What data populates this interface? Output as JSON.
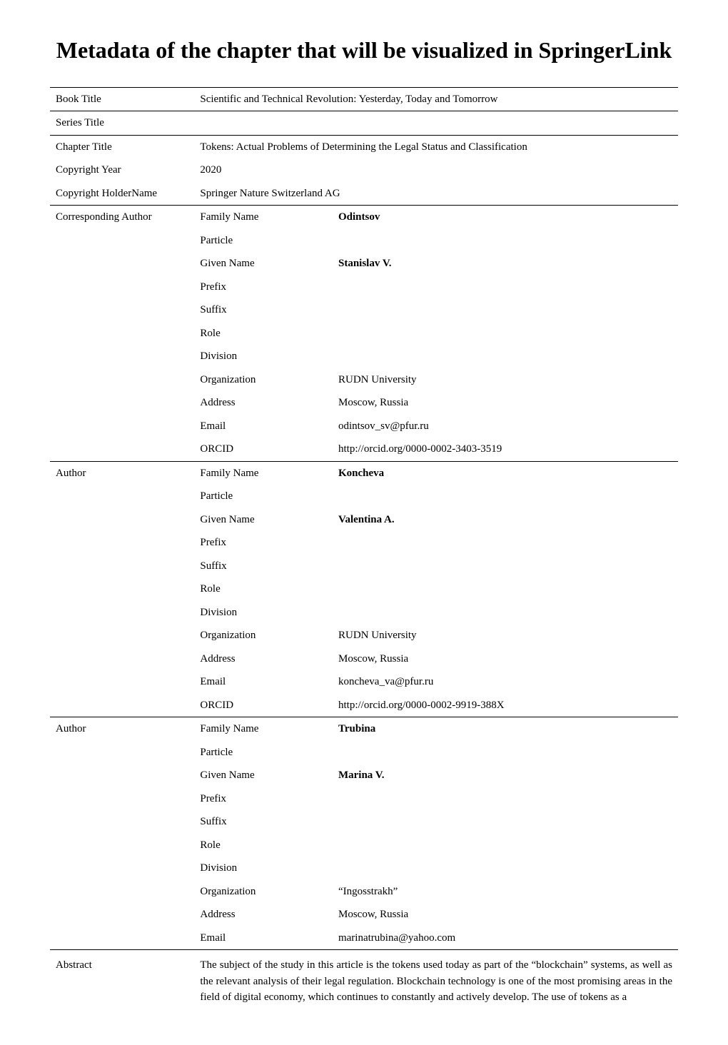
{
  "title": "Metadata of the chapter that will be visualized in SpringerLink",
  "metadata": {
    "book_title_label": "Book Title",
    "book_title_value": "Scientific and Technical Revolution: Yesterday, Today and Tomorrow",
    "series_title_label": "Series Title",
    "series_title_value": "",
    "chapter_title_label": "Chapter Title",
    "chapter_title_value": "Tokens: Actual Problems of Determining the Legal Status and Classification",
    "copyright_year_label": "Copyright Year",
    "copyright_year_value": "2020",
    "copyright_holder_label": "Copyright HolderName",
    "copyright_holder_value": "Springer Nature Switzerland AG"
  },
  "authors": [
    {
      "role_label": "Corresponding Author",
      "fields": {
        "family_name_label": "Family Name",
        "family_name_value": "Odintsov",
        "particle_label": "Particle",
        "particle_value": "",
        "given_name_label": "Given Name",
        "given_name_value": "Stanislav V.",
        "prefix_label": "Prefix",
        "prefix_value": "",
        "suffix_label": "Suffix",
        "suffix_value": "",
        "role_label": "Role",
        "role_value": "",
        "division_label": "Division",
        "division_value": "",
        "organization_label": "Organization",
        "organization_value": "RUDN University",
        "address_label": "Address",
        "address_value": "Moscow, Russia",
        "email_label": "Email",
        "email_value": "odintsov_sv@pfur.ru",
        "orcid_label": "ORCID",
        "orcid_value": "http://orcid.org/0000-0002-3403-3519"
      }
    },
    {
      "role_label": "Author",
      "fields": {
        "family_name_label": "Family Name",
        "family_name_value": "Koncheva",
        "particle_label": "Particle",
        "particle_value": "",
        "given_name_label": "Given Name",
        "given_name_value": "Valentina A.",
        "prefix_label": "Prefix",
        "prefix_value": "",
        "suffix_label": "Suffix",
        "suffix_value": "",
        "role_label": "Role",
        "role_value": "",
        "division_label": "Division",
        "division_value": "",
        "organization_label": "Organization",
        "organization_value": "RUDN University",
        "address_label": "Address",
        "address_value": "Moscow, Russia",
        "email_label": "Email",
        "email_value": "koncheva_va@pfur.ru",
        "orcid_label": "ORCID",
        "orcid_value": "http://orcid.org/0000-0002-9919-388X"
      }
    },
    {
      "role_label": "Author",
      "fields": {
        "family_name_label": "Family Name",
        "family_name_value": "Trubina",
        "particle_label": "Particle",
        "particle_value": "",
        "given_name_label": "Given Name",
        "given_name_value": "Marina V.",
        "prefix_label": "Prefix",
        "prefix_value": "",
        "suffix_label": "Suffix",
        "suffix_value": "",
        "role_label": "Role",
        "role_value": "",
        "division_label": "Division",
        "division_value": "",
        "organization_label": "Organization",
        "organization_value": "“Ingosstrakh”",
        "address_label": "Address",
        "address_value": "Moscow, Russia",
        "email_label": "Email",
        "email_value": "marinatrubina@yahoo.com"
      }
    }
  ],
  "abstract": {
    "label": "Abstract",
    "text": "The subject of the study in this article is the tokens used today as part of the “blockchain” systems, as well as the relevant analysis of their legal regulation. Blockchain technology is one of the most promising areas in the field of digital economy, which continues to constantly and actively develop. The use of tokens as a"
  }
}
